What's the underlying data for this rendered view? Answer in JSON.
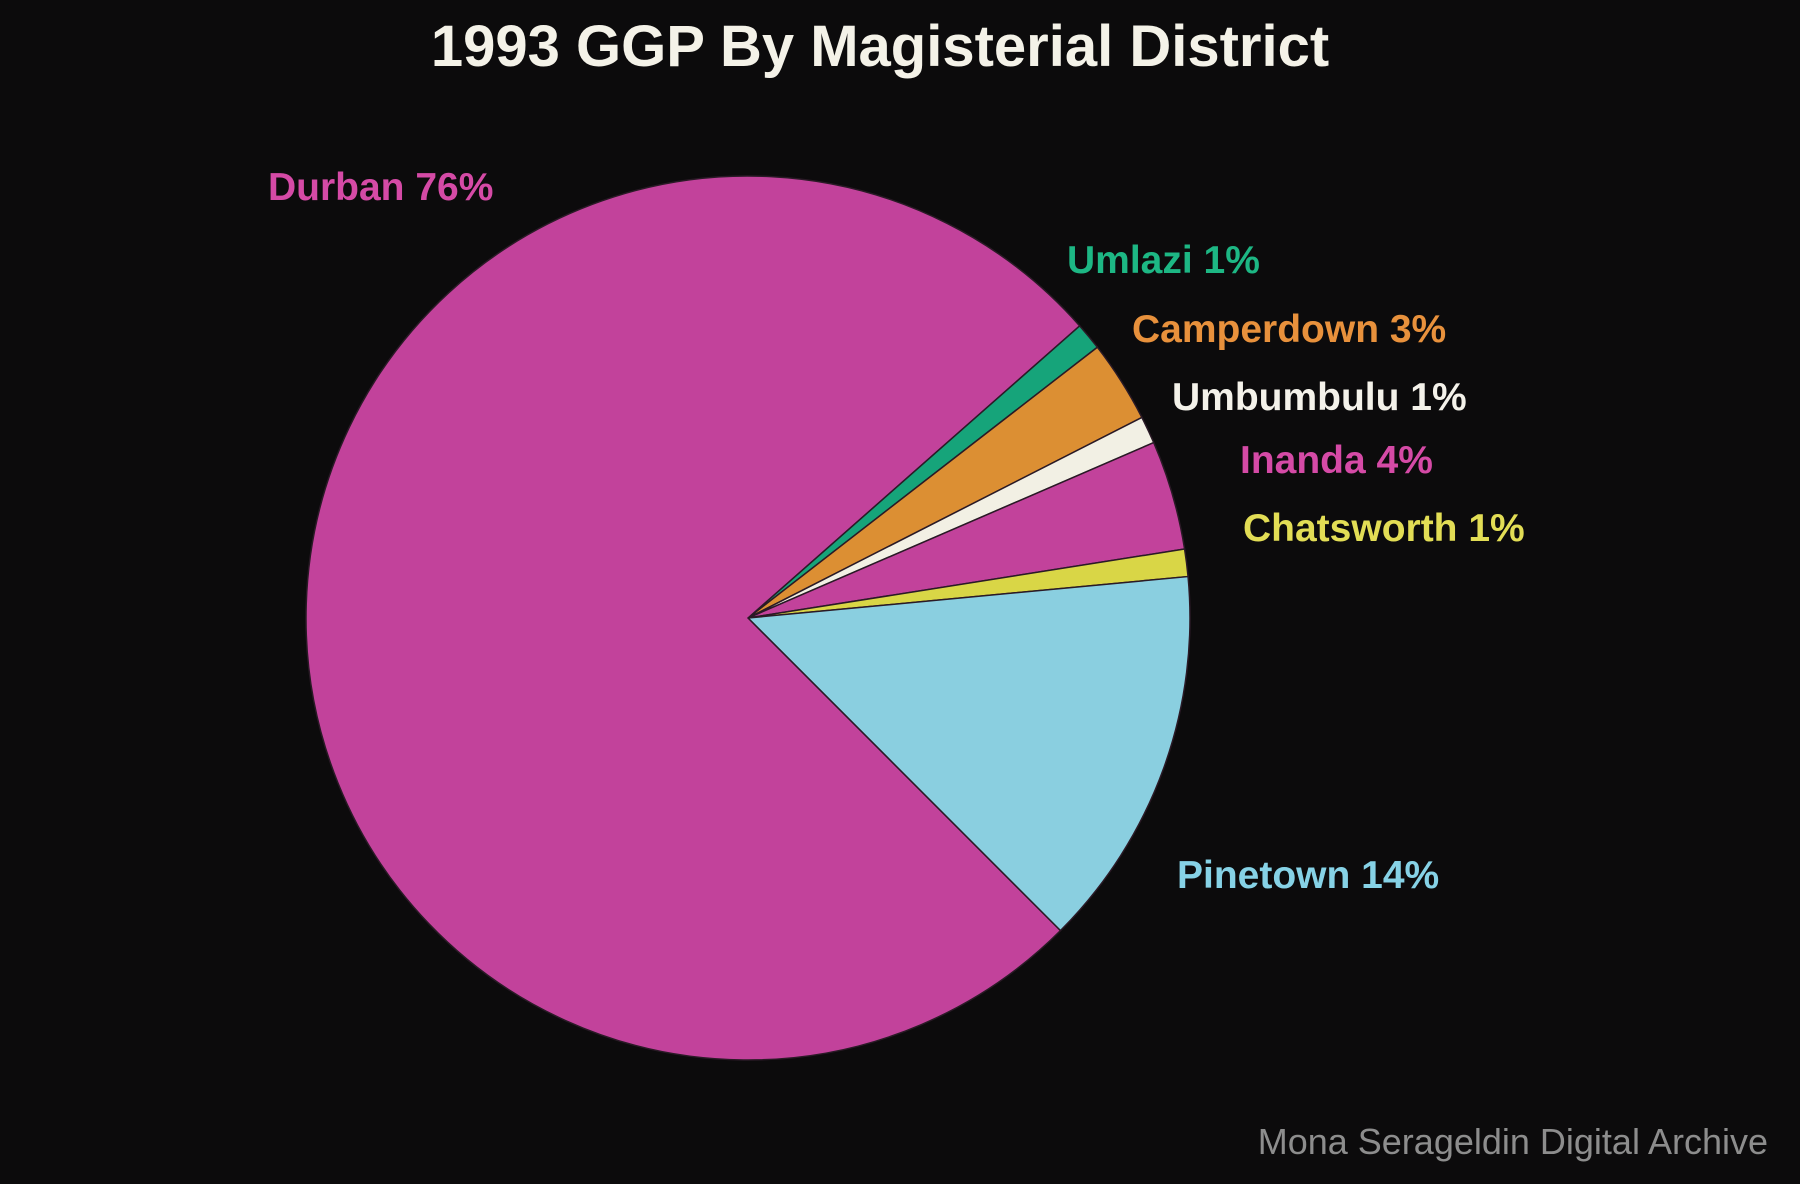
{
  "chart_data": {
    "type": "pie",
    "title": "1993 GGP By Magisterial District",
    "slices": [
      {
        "name": "Durban",
        "value": 76,
        "label": "Durban 76%",
        "color": "#c2429b",
        "label_color": "#d54aa6"
      },
      {
        "name": "Umlazi",
        "value": 1,
        "label": "Umlazi 1%",
        "color": "#16a47a",
        "label_color": "#1db784"
      },
      {
        "name": "Camperdown",
        "value": 3,
        "label": "Camperdown 3%",
        "color": "#dc8f33",
        "label_color": "#e8913c"
      },
      {
        "name": "Umbumbulu",
        "value": 1,
        "label": "Umbumbulu 1%",
        "color": "#f2f0e4",
        "label_color": "#f4f2ea"
      },
      {
        "name": "Inanda",
        "value": 4,
        "label": "Inanda 4%",
        "color": "#c2429b",
        "label_color": "#d54aa6"
      },
      {
        "name": "Chatsworth",
        "value": 1,
        "label": "Chatsworth 1%",
        "color": "#d9d646",
        "label_color": "#e2dd55"
      },
      {
        "name": "Pinetown",
        "value": 14,
        "label": "Pinetown 14%",
        "color": "#8acfe0",
        "label_color": "#86d2e6"
      }
    ]
  },
  "watermark": "Mona Serageldin Digital Archive"
}
